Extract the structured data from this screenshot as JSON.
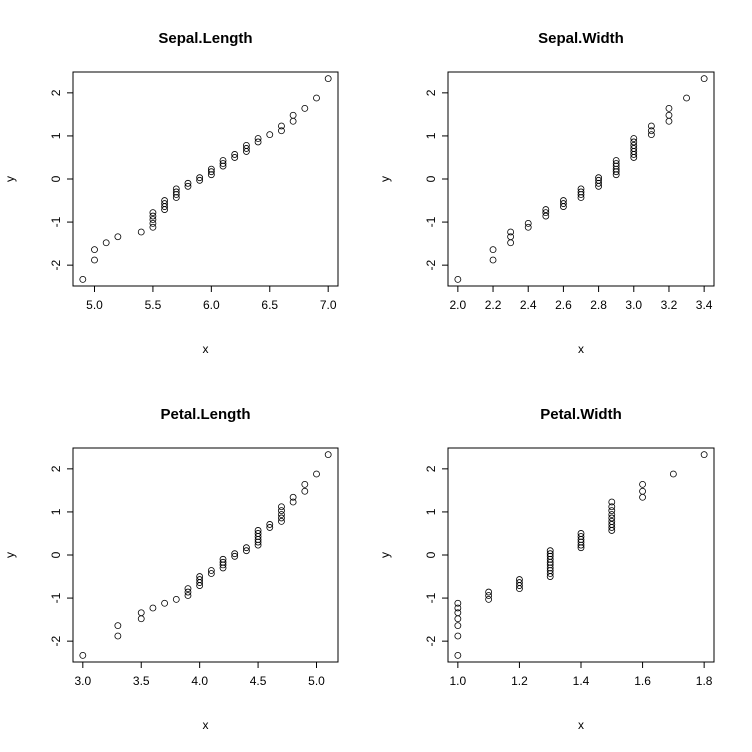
{
  "chart_data": [
    {
      "type": "scatter",
      "title": "Sepal.Length",
      "xlabel": "x",
      "ylabel": "y",
      "xlim": [
        4.9,
        7.0
      ],
      "ylim": [
        -2.3,
        2.3
      ],
      "xticks": [
        "5.0",
        "5.5",
        "6.0",
        "6.5",
        "7.0"
      ],
      "yticks": [
        "-2",
        "-1",
        "0",
        "1",
        "2"
      ],
      "points": [
        [
          4.9,
          -2.33
        ],
        [
          5.0,
          -1.88
        ],
        [
          5.0,
          -1.64
        ],
        [
          5.1,
          -1.48
        ],
        [
          5.2,
          -1.34
        ],
        [
          5.4,
          -1.23
        ],
        [
          5.5,
          -1.12
        ],
        [
          5.5,
          -1.03
        ],
        [
          5.5,
          -0.94
        ],
        [
          5.5,
          -0.86
        ],
        [
          5.5,
          -0.78
        ],
        [
          5.6,
          -0.71
        ],
        [
          5.6,
          -0.64
        ],
        [
          5.6,
          -0.57
        ],
        [
          5.6,
          -0.5
        ],
        [
          5.7,
          -0.43
        ],
        [
          5.7,
          -0.36
        ],
        [
          5.7,
          -0.3
        ],
        [
          5.7,
          -0.23
        ],
        [
          5.8,
          -0.17
        ],
        [
          5.8,
          -0.1
        ],
        [
          5.9,
          -0.03
        ],
        [
          5.9,
          0.03
        ],
        [
          6.0,
          0.1
        ],
        [
          6.0,
          0.17
        ],
        [
          6.0,
          0.23
        ],
        [
          6.1,
          0.3
        ],
        [
          6.1,
          0.36
        ],
        [
          6.1,
          0.43
        ],
        [
          6.2,
          0.5
        ],
        [
          6.2,
          0.57
        ],
        [
          6.3,
          0.64
        ],
        [
          6.3,
          0.71
        ],
        [
          6.3,
          0.78
        ],
        [
          6.4,
          0.86
        ],
        [
          6.4,
          0.94
        ],
        [
          6.5,
          1.03
        ],
        [
          6.6,
          1.12
        ],
        [
          6.6,
          1.23
        ],
        [
          6.7,
          1.34
        ],
        [
          6.7,
          1.48
        ],
        [
          6.8,
          1.64
        ],
        [
          6.9,
          1.88
        ],
        [
          7.0,
          2.33
        ]
      ]
    },
    {
      "type": "scatter",
      "title": "Sepal.Width",
      "xlabel": "x",
      "ylabel": "y",
      "xlim": [
        2.0,
        3.4
      ],
      "ylim": [
        -2.3,
        2.3
      ],
      "xticks": [
        "2.0",
        "2.2",
        "2.4",
        "2.6",
        "2.8",
        "3.0",
        "3.2",
        "3.4"
      ],
      "yticks": [
        "-2",
        "-1",
        "0",
        "1",
        "2"
      ],
      "points": [
        [
          2.0,
          -2.33
        ],
        [
          2.2,
          -1.88
        ],
        [
          2.2,
          -1.64
        ],
        [
          2.3,
          -1.48
        ],
        [
          2.3,
          -1.34
        ],
        [
          2.3,
          -1.23
        ],
        [
          2.4,
          -1.12
        ],
        [
          2.4,
          -1.03
        ],
        [
          2.5,
          -0.86
        ],
        [
          2.5,
          -0.78
        ],
        [
          2.5,
          -0.71
        ],
        [
          2.6,
          -0.64
        ],
        [
          2.6,
          -0.57
        ],
        [
          2.6,
          -0.5
        ],
        [
          2.7,
          -0.43
        ],
        [
          2.7,
          -0.36
        ],
        [
          2.7,
          -0.3
        ],
        [
          2.7,
          -0.23
        ],
        [
          2.8,
          -0.17
        ],
        [
          2.8,
          -0.1
        ],
        [
          2.8,
          -0.03
        ],
        [
          2.8,
          0.03
        ],
        [
          2.9,
          0.1
        ],
        [
          2.9,
          0.17
        ],
        [
          2.9,
          0.23
        ],
        [
          2.9,
          0.3
        ],
        [
          2.9,
          0.36
        ],
        [
          2.9,
          0.43
        ],
        [
          3.0,
          0.5
        ],
        [
          3.0,
          0.57
        ],
        [
          3.0,
          0.64
        ],
        [
          3.0,
          0.71
        ],
        [
          3.0,
          0.78
        ],
        [
          3.0,
          0.86
        ],
        [
          3.0,
          0.94
        ],
        [
          3.1,
          1.03
        ],
        [
          3.1,
          1.12
        ],
        [
          3.1,
          1.23
        ],
        [
          3.2,
          1.34
        ],
        [
          3.2,
          1.48
        ],
        [
          3.2,
          1.64
        ],
        [
          3.3,
          1.88
        ],
        [
          3.4,
          2.33
        ]
      ]
    },
    {
      "type": "scatter",
      "title": "Petal.Length",
      "xlabel": "x",
      "ylabel": "y",
      "xlim": [
        3.0,
        5.1
      ],
      "ylim": [
        -2.3,
        2.3
      ],
      "xticks": [
        "3.0",
        "3.5",
        "4.0",
        "4.5",
        "5.0"
      ],
      "yticks": [
        "-2",
        "-1",
        "0",
        "1",
        "2"
      ],
      "points": [
        [
          3.0,
          -2.33
        ],
        [
          3.3,
          -1.88
        ],
        [
          3.3,
          -1.64
        ],
        [
          3.5,
          -1.48
        ],
        [
          3.5,
          -1.34
        ],
        [
          3.6,
          -1.23
        ],
        [
          3.7,
          -1.12
        ],
        [
          3.8,
          -1.03
        ],
        [
          3.9,
          -0.94
        ],
        [
          3.9,
          -0.86
        ],
        [
          3.9,
          -0.78
        ],
        [
          4.0,
          -0.71
        ],
        [
          4.0,
          -0.64
        ],
        [
          4.0,
          -0.57
        ],
        [
          4.0,
          -0.5
        ],
        [
          4.1,
          -0.43
        ],
        [
          4.1,
          -0.36
        ],
        [
          4.2,
          -0.3
        ],
        [
          4.2,
          -0.23
        ],
        [
          4.2,
          -0.17
        ],
        [
          4.2,
          -0.1
        ],
        [
          4.3,
          -0.03
        ],
        [
          4.3,
          0.03
        ],
        [
          4.4,
          0.1
        ],
        [
          4.4,
          0.17
        ],
        [
          4.5,
          0.23
        ],
        [
          4.5,
          0.3
        ],
        [
          4.5,
          0.36
        ],
        [
          4.5,
          0.43
        ],
        [
          4.5,
          0.5
        ],
        [
          4.5,
          0.57
        ],
        [
          4.6,
          0.64
        ],
        [
          4.6,
          0.71
        ],
        [
          4.7,
          0.78
        ],
        [
          4.7,
          0.86
        ],
        [
          4.7,
          0.94
        ],
        [
          4.7,
          1.03
        ],
        [
          4.7,
          1.12
        ],
        [
          4.8,
          1.23
        ],
        [
          4.8,
          1.34
        ],
        [
          4.9,
          1.48
        ],
        [
          4.9,
          1.64
        ],
        [
          5.0,
          1.88
        ],
        [
          5.1,
          2.33
        ]
      ]
    },
    {
      "type": "scatter",
      "title": "Petal.Width",
      "xlabel": "x",
      "ylabel": "y",
      "xlim": [
        1.0,
        1.8
      ],
      "ylim": [
        -2.3,
        2.3
      ],
      "xticks": [
        "1.0",
        "1.2",
        "1.4",
        "1.6",
        "1.8"
      ],
      "yticks": [
        "-2",
        "-1",
        "0",
        "1",
        "2"
      ],
      "points": [
        [
          1.0,
          -2.33
        ],
        [
          1.0,
          -1.88
        ],
        [
          1.0,
          -1.64
        ],
        [
          1.0,
          -1.48
        ],
        [
          1.0,
          -1.34
        ],
        [
          1.0,
          -1.23
        ],
        [
          1.0,
          -1.12
        ],
        [
          1.1,
          -1.03
        ],
        [
          1.1,
          -0.94
        ],
        [
          1.1,
          -0.86
        ],
        [
          1.2,
          -0.78
        ],
        [
          1.2,
          -0.71
        ],
        [
          1.2,
          -0.64
        ],
        [
          1.2,
          -0.57
        ],
        [
          1.3,
          -0.5
        ],
        [
          1.3,
          -0.43
        ],
        [
          1.3,
          -0.36
        ],
        [
          1.3,
          -0.3
        ],
        [
          1.3,
          -0.23
        ],
        [
          1.3,
          -0.17
        ],
        [
          1.3,
          -0.1
        ],
        [
          1.3,
          -0.03
        ],
        [
          1.3,
          0.03
        ],
        [
          1.3,
          0.1
        ],
        [
          1.4,
          0.17
        ],
        [
          1.4,
          0.23
        ],
        [
          1.4,
          0.3
        ],
        [
          1.4,
          0.36
        ],
        [
          1.4,
          0.43
        ],
        [
          1.4,
          0.5
        ],
        [
          1.5,
          0.57
        ],
        [
          1.5,
          0.64
        ],
        [
          1.5,
          0.71
        ],
        [
          1.5,
          0.78
        ],
        [
          1.5,
          0.86
        ],
        [
          1.5,
          0.94
        ],
        [
          1.5,
          1.03
        ],
        [
          1.5,
          1.12
        ],
        [
          1.5,
          1.23
        ],
        [
          1.6,
          1.34
        ],
        [
          1.6,
          1.48
        ],
        [
          1.6,
          1.64
        ],
        [
          1.7,
          1.88
        ],
        [
          1.8,
          2.33
        ]
      ]
    }
  ]
}
